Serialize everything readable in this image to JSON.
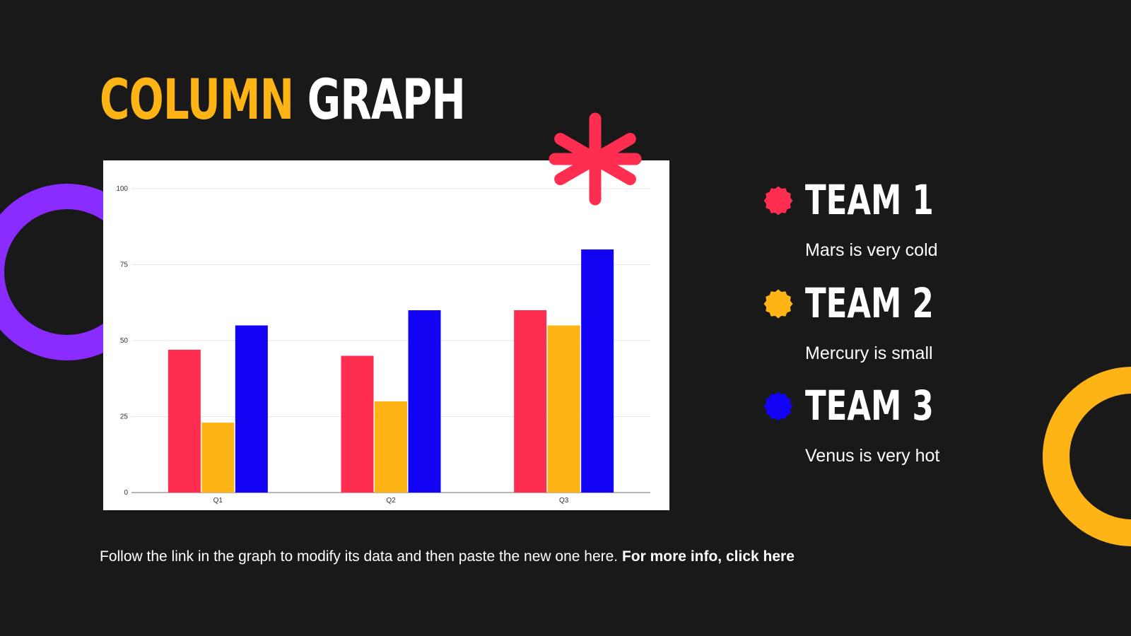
{
  "title": {
    "accent": "COLUMN",
    "rest": "GRAPH"
  },
  "colors": {
    "background": "#191919",
    "team1": "#FF2D4F",
    "team2": "#FFB416",
    "team3": "#1203F5",
    "purple": "#8A2BFF",
    "yellow": "#FFB416"
  },
  "legend": [
    {
      "name": "TEAM 1",
      "description": "Mars is very cold",
      "color": "#FF2D4F"
    },
    {
      "name": "TEAM 2",
      "description": "Mercury is small",
      "color": "#FFB416"
    },
    {
      "name": "TEAM 3",
      "description": "Venus is very hot",
      "color": "#1203F5"
    }
  ],
  "footer": {
    "text": "Follow the link in the graph to modify its data and then paste the new one here.",
    "link": "For more info, click here"
  },
  "chart_data": {
    "type": "bar",
    "categories": [
      "Q1",
      "Q2",
      "Q3"
    ],
    "series": [
      {
        "values": [
          47,
          45,
          60
        ],
        "color": "#FF2D4F"
      },
      {
        "values": [
          23,
          30,
          55
        ],
        "color": "#FFB416"
      },
      {
        "values": [
          55,
          60,
          80
        ],
        "color": "#1203F5"
      }
    ],
    "ylim": [
      0,
      100
    ],
    "yticks": [
      0,
      25,
      50,
      75,
      100
    ],
    "grid": true
  }
}
